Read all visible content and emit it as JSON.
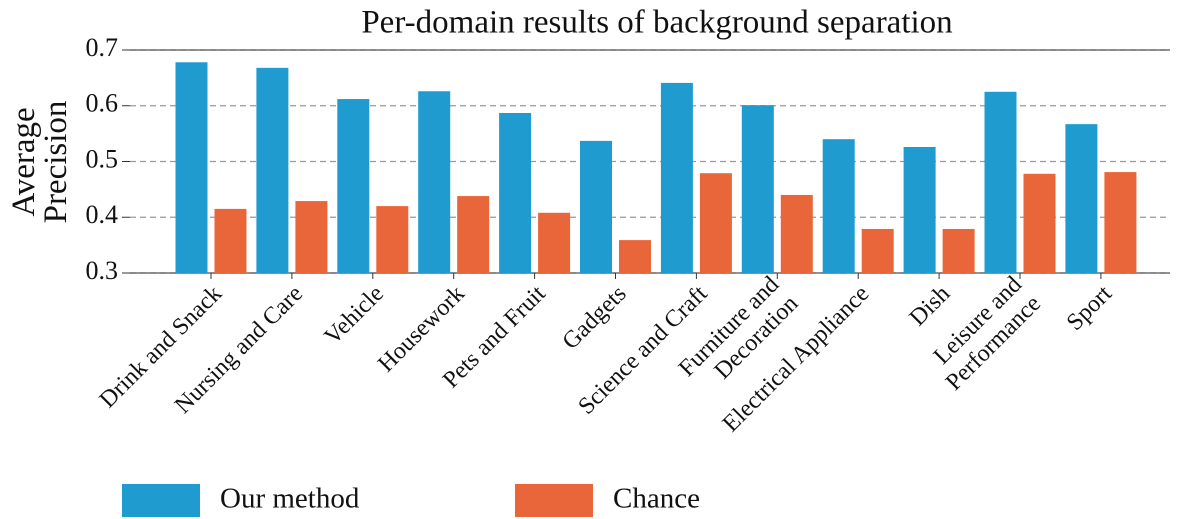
{
  "chart_data": {
    "type": "bar",
    "title": "Per-domain results of background separation",
    "y_label": "Average\nPrecision",
    "categories": [
      "Drink and Snack",
      "Nursing and Care",
      "Vehicle",
      "Housework",
      "Pets and Fruit",
      "Gadgets",
      "Science and Craft",
      "Furniture and\nDecoration",
      "Electrical Appliance",
      "Dish",
      "Leisure and\nPerformance",
      "Sport"
    ],
    "series": [
      {
        "name": "Our method",
        "color": "#1f9bd0",
        "values": [
          0.678,
          0.668,
          0.612,
          0.626,
          0.587,
          0.537,
          0.641,
          0.601,
          0.54,
          0.526,
          0.625,
          0.567
        ]
      },
      {
        "name": "Chance",
        "color": "#e8663a",
        "values": [
          0.415,
          0.429,
          0.42,
          0.438,
          0.408,
          0.359,
          0.479,
          0.44,
          0.379,
          0.379,
          0.478,
          0.481
        ]
      }
    ],
    "ylim": [
      0.3,
      0.7
    ],
    "yticks": [
      0.3,
      0.4,
      0.5,
      0.6,
      0.7
    ],
    "grid": true,
    "legend": "bottom"
  }
}
